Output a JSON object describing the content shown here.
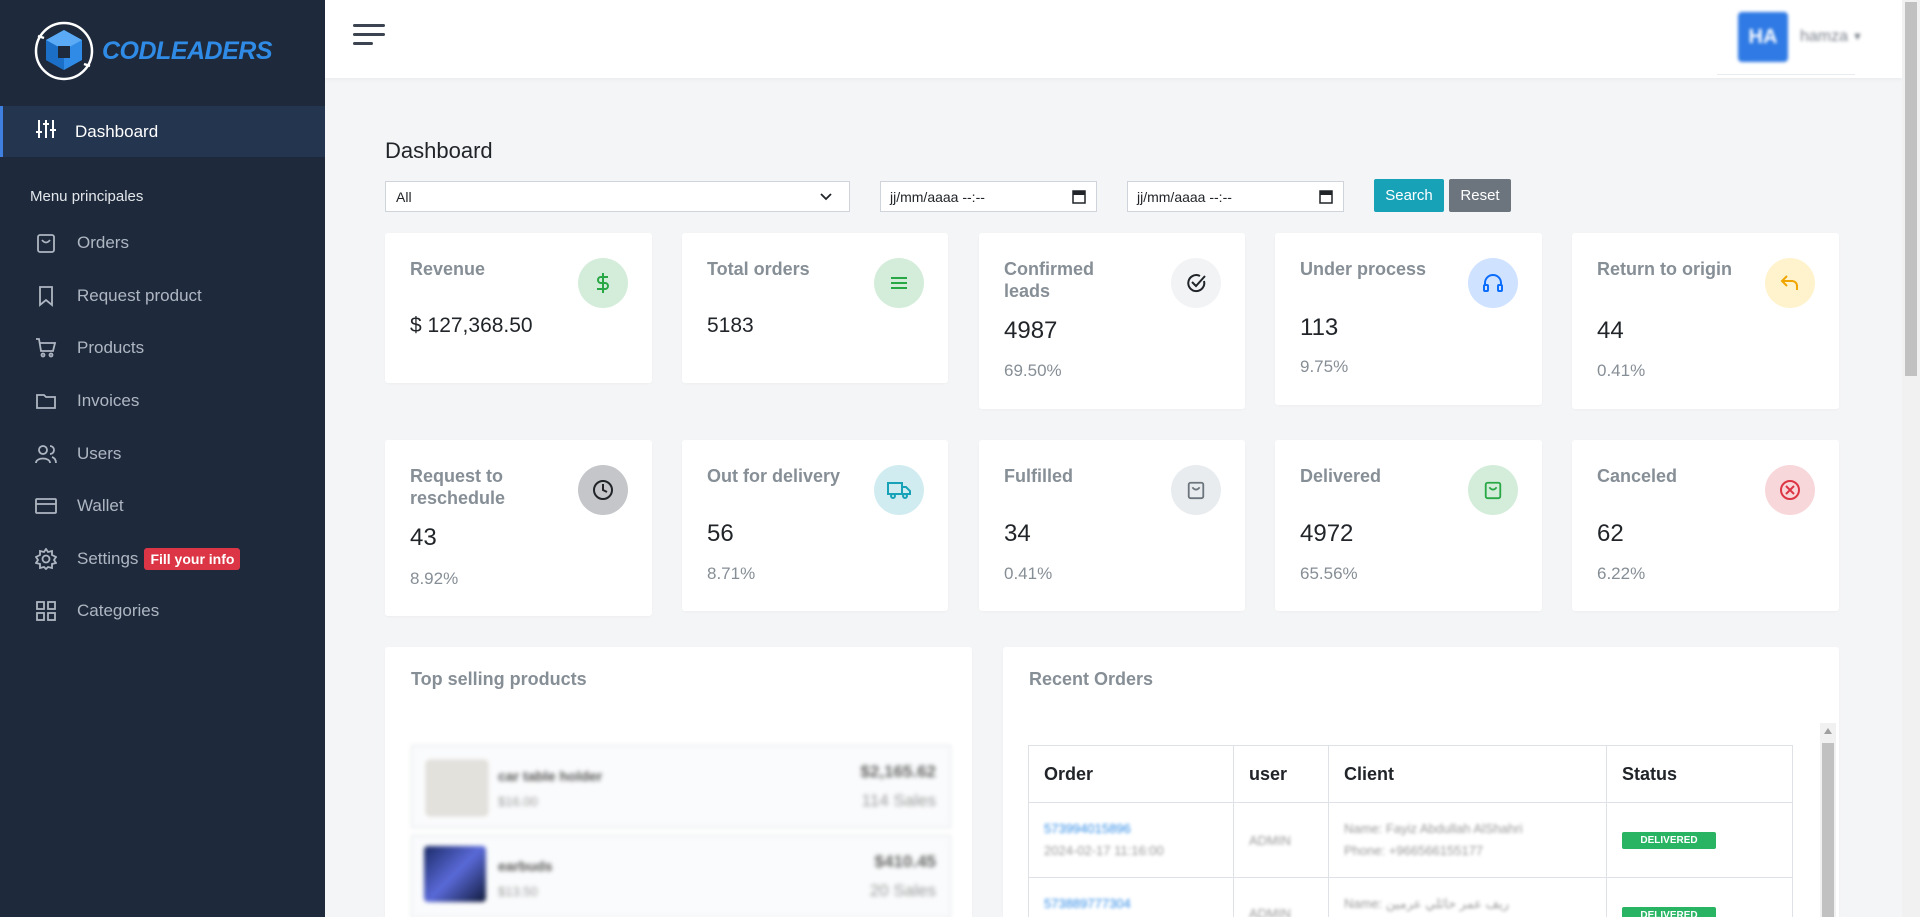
{
  "brand": {
    "name": "CODLEADERS"
  },
  "sidebar": {
    "active": {
      "label": "Dashboard",
      "icon": "sliders-icon"
    },
    "section_title": "Menu principales",
    "items": [
      {
        "label": "Orders",
        "icon": "bag-icon"
      },
      {
        "label": "Request product",
        "icon": "bookmark-icon"
      },
      {
        "label": "Products",
        "icon": "cart-icon"
      },
      {
        "label": "Invoices",
        "icon": "folder-icon"
      },
      {
        "label": "Users",
        "icon": "users-icon"
      },
      {
        "label": "Wallet",
        "icon": "card-icon"
      },
      {
        "label": "Settings",
        "icon": "gear-icon",
        "badge": "Fill your info"
      },
      {
        "label": "Categories",
        "icon": "grid-icon"
      }
    ]
  },
  "header": {
    "avatar_initials": "HA",
    "username": "hamza"
  },
  "main": {
    "title": "Dashboard",
    "filter": {
      "selected": "All"
    },
    "date_from": {
      "placeholder": "jj/mm/aaaa --:--"
    },
    "date_to": {
      "placeholder": "jj/mm/aaaa --:--"
    },
    "search_label": "Search",
    "reset_label": "Reset"
  },
  "stats": [
    {
      "title": "Revenue",
      "value": "$ 127,368.50",
      "pct": "",
      "icon": "dollar-icon",
      "icon_bg": "#d4edda",
      "icon_color": "#28a745"
    },
    {
      "title": "Total orders",
      "value": "5183",
      "pct": "",
      "icon": "list-icon",
      "icon_bg": "#d4edda",
      "icon_color": "#28a745"
    },
    {
      "title": "Confirmed leads",
      "value": "4987",
      "pct": "69.50%",
      "icon": "check-circle-icon",
      "icon_bg": "#f1f3f5",
      "icon_color": "#212529"
    },
    {
      "title": "Under process",
      "value": "113",
      "pct": "9.75%",
      "icon": "headphones-icon",
      "icon_bg": "#cfe2ff",
      "icon_color": "#0d6efd"
    },
    {
      "title": "Return to origin",
      "value": "44",
      "pct": "0.41%",
      "icon": "return-icon",
      "icon_bg": "#fff3cd",
      "icon_color": "#f0a500"
    },
    {
      "title": "Request to reschedule",
      "value": "43",
      "pct": "8.92%",
      "icon": "clock-icon",
      "icon_bg": "#c4c6c9",
      "icon_color": "#212529"
    },
    {
      "title": "Out for delivery",
      "value": "56",
      "pct": "8.71%",
      "icon": "truck-icon",
      "icon_bg": "#d1ecf1",
      "icon_color": "#17a2b8"
    },
    {
      "title": "Fulfilled",
      "value": "34",
      "pct": "0.41%",
      "icon": "bag-icon",
      "icon_bg": "#e9ecef",
      "icon_color": "#6c757d"
    },
    {
      "title": "Delivered",
      "value": "4972",
      "pct": "65.56%",
      "icon": "bag-icon",
      "icon_bg": "#d4edda",
      "icon_color": "#28a745"
    },
    {
      "title": "Canceled",
      "value": "62",
      "pct": "6.22%",
      "icon": "x-circle-icon",
      "icon_bg": "#f8d7da",
      "icon_color": "#dc3545"
    }
  ],
  "top_products": {
    "title": "Top selling products",
    "items": [
      {
        "name": "car table holder",
        "price": "$16.00",
        "total": "$2,165.62",
        "sales": "114 Sales"
      },
      {
        "name": "earbuds",
        "price": "$13.50",
        "total": "$410.45",
        "sales": "20 Sales"
      }
    ]
  },
  "recent_orders": {
    "title": "Recent Orders",
    "columns": [
      "Order",
      "user",
      "Client",
      "Status"
    ],
    "rows": [
      {
        "order": "573994015896",
        "date": "2024-02-17 11:16:00",
        "user": "ADMIN",
        "client_name": "Name: Fayiz Abdullah AlShahri",
        "client_phone": "Phone: +966566155177",
        "status": "DELIVERED"
      },
      {
        "order": "573889777304",
        "date": "",
        "user": "ADMIN",
        "client_name": "Name: ريف عمر حائلي عرمين",
        "client_phone": "",
        "status": "DELIVERED"
      }
    ]
  }
}
